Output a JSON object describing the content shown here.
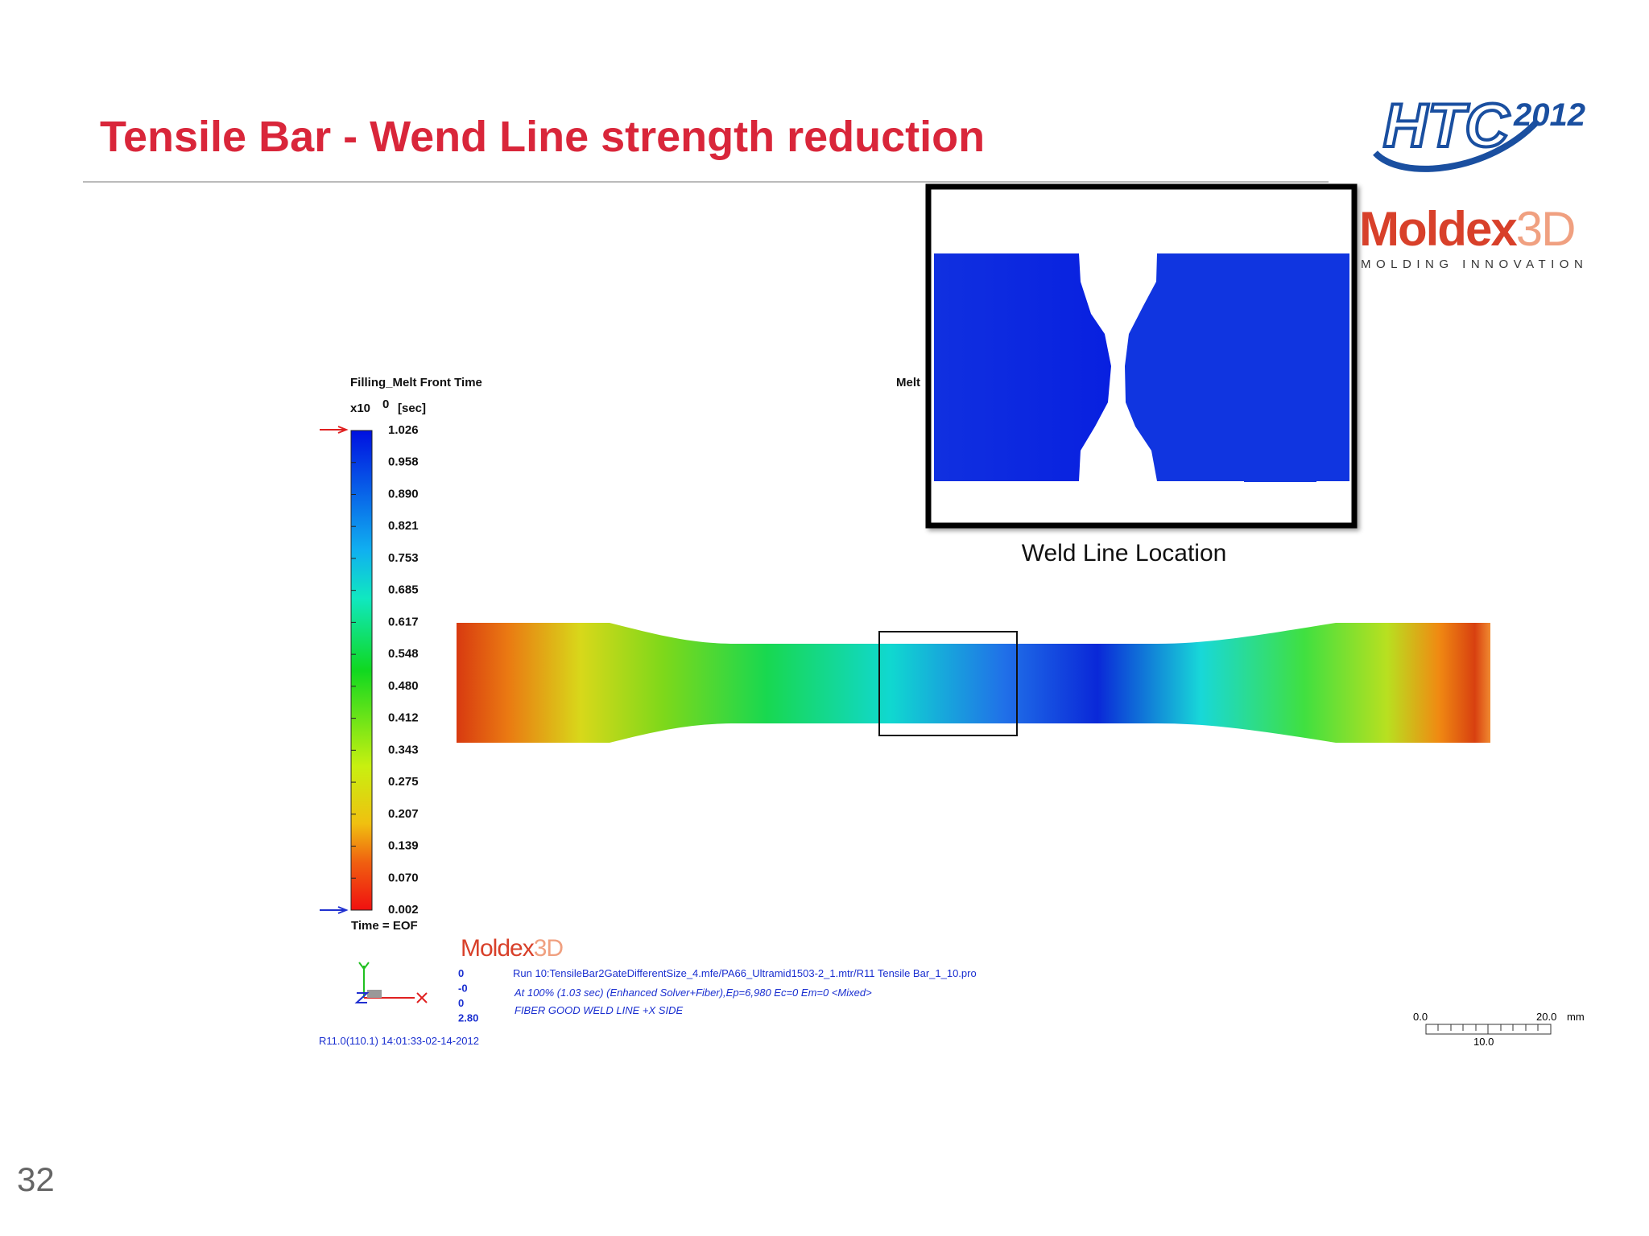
{
  "slide": {
    "title": "Tensile Bar - Wend Line strength reduction",
    "page_number": "32"
  },
  "logos": {
    "htc": "HTC",
    "year": "2012",
    "moldex": "Moldex",
    "moldex_3d": "3D",
    "tagline": "MOLDING INNOVATION"
  },
  "legend": {
    "title": "Filling_Melt Front Time",
    "scale": "x10",
    "exponent": "0",
    "unit": "[sec]",
    "labels": [
      "1.026",
      "0.958",
      "0.890",
      "0.821",
      "0.753",
      "0.685",
      "0.617",
      "0.548",
      "0.480",
      "0.412",
      "0.343",
      "0.275",
      "0.207",
      "0.139",
      "0.070",
      "0.002"
    ],
    "footer": "Time = EOF"
  },
  "inset": {
    "hidden_label": "Melt",
    "caption": "Weld Line Location"
  },
  "info": {
    "logo": "Moldex",
    "logo_3d": "3D",
    "values": [
      "0",
      "-0",
      "0",
      "2.80"
    ],
    "lines": [
      "Run 10:TensileBar2GateDifferentSize_4.mfe/PA66_Ultramid1503-2_1.mtr/R11 Tensile Bar_1_10.pro",
      "At 100% (1.03 sec) (Enhanced Solver+Fiber),Ep=6,980 Ec=0 Em=0  <Mixed>",
      "FIBER GOOD WELD LINE +X SIDE"
    ],
    "version": "R11.0(110.1) 14:01:33-02-14-2012"
  },
  "scale_bar": {
    "start": "0.0",
    "end": "20.0",
    "unit": "mm",
    "mid": "10.0"
  }
}
